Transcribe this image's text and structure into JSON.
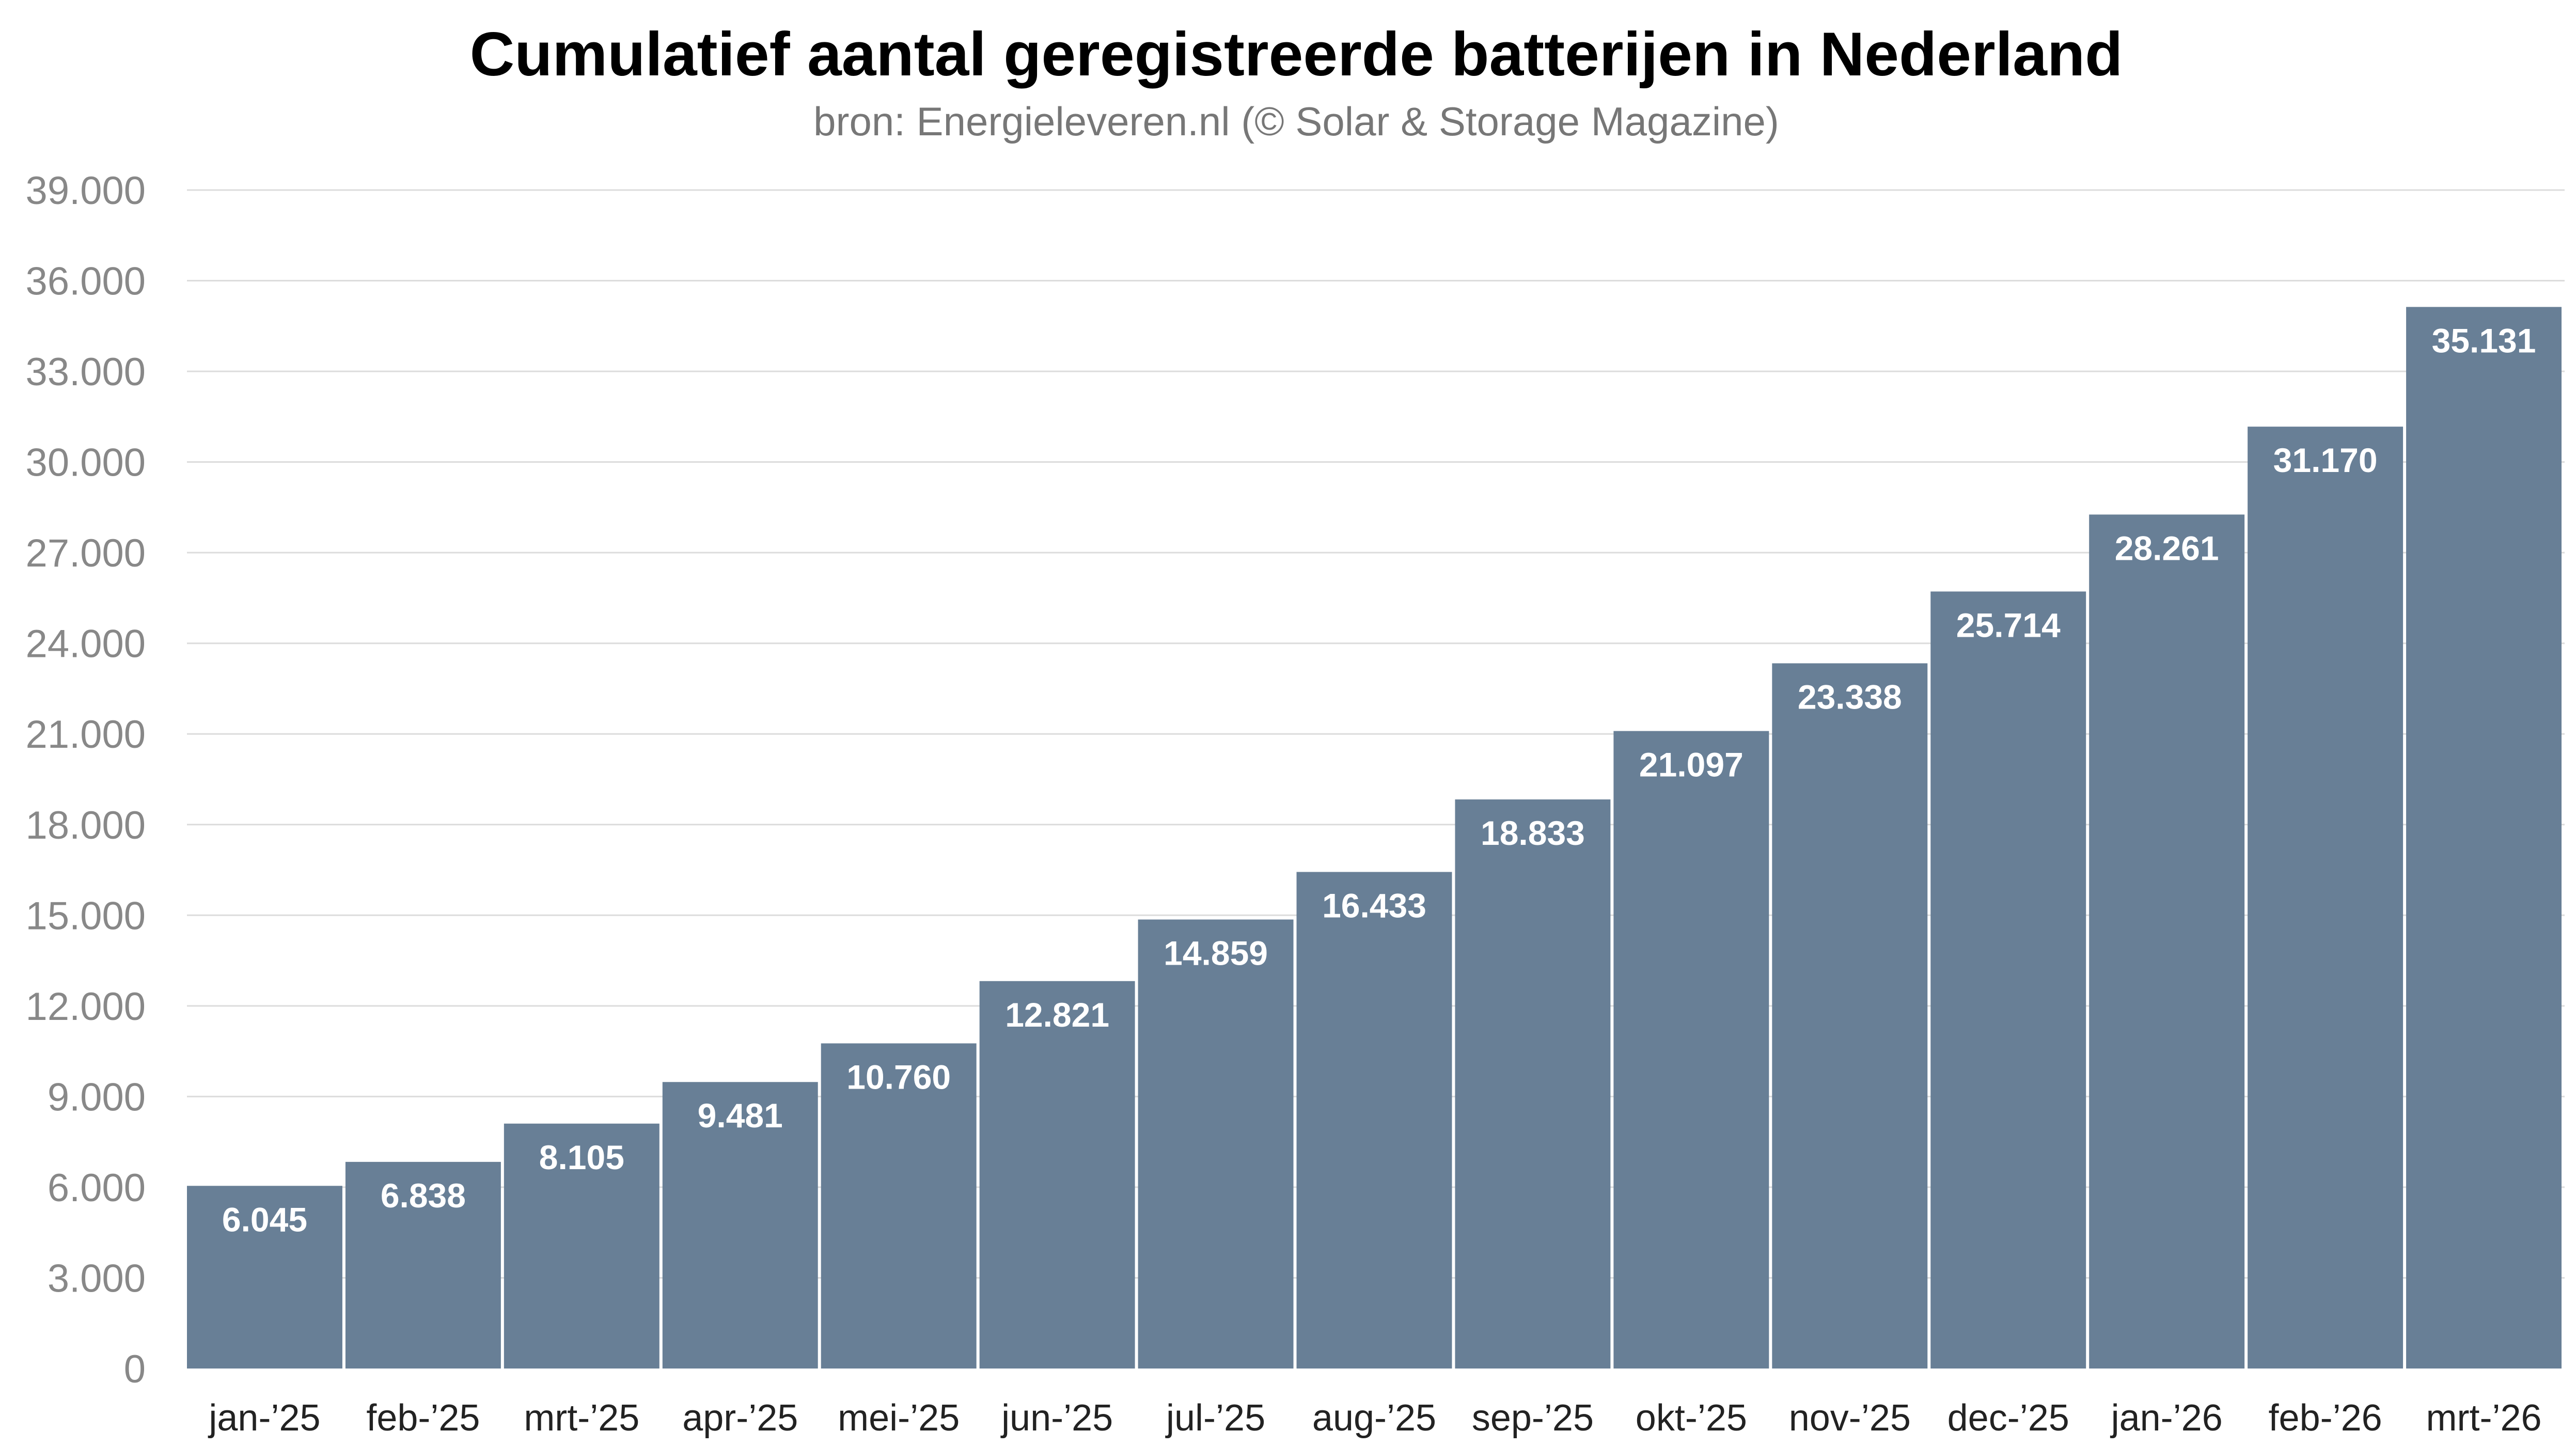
{
  "colors": {
    "bar": "#687f96",
    "background": "#ffffff",
    "gridline": "#dcdcdc",
    "title": "#000000",
    "subtitle": "#777777",
    "tick": "#888888",
    "data_label": "#ffffff"
  },
  "chart_data": {
    "type": "bar",
    "title": "Cumulatief aantal geregistreerde batterijen in Nederland",
    "subtitle": "bron: Energieleveren.nl (© Solar & Storage Magazine)",
    "xlabel": "",
    "ylabel": "",
    "grid": true,
    "legend": "none",
    "ylim": [
      0,
      39000
    ],
    "y_ticks": [
      0,
      3000,
      6000,
      9000,
      12000,
      15000,
      18000,
      21000,
      24000,
      27000,
      30000,
      33000,
      36000,
      39000
    ],
    "y_tick_labels": [
      "0",
      "3.000",
      "6.000",
      "9.000",
      "12.000",
      "15.000",
      "18.000",
      "21.000",
      "24.000",
      "27.000",
      "30.000",
      "33.000",
      "36.000",
      "39.000"
    ],
    "categories": [
      "jan-’25",
      "feb-’25",
      "mrt-’25",
      "apr-’25",
      "mei-’25",
      "jun-’25",
      "jul-’25",
      "aug-’25",
      "sep-’25",
      "okt-’25",
      "nov-’25",
      "dec-’25",
      "jan-’26",
      "feb-’26",
      "mrt-’26"
    ],
    "values": [
      6045,
      6838,
      8105,
      9481,
      10760,
      12821,
      14859,
      16433,
      18833,
      21097,
      23338,
      25714,
      28261,
      31170,
      35131
    ],
    "value_labels": [
      "6.045",
      "6.838",
      "8.105",
      "9.481",
      "10.760",
      "12.821",
      "14.859",
      "16.433",
      "18.833",
      "21.097",
      "23.338",
      "25.714",
      "28.261",
      "31.170",
      "35.131"
    ]
  }
}
